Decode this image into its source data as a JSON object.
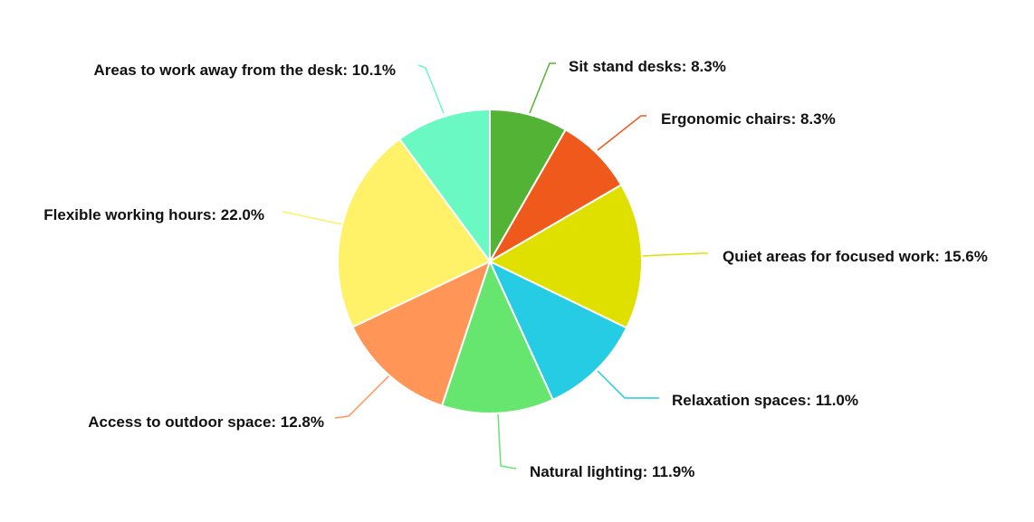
{
  "chart_data": {
    "type": "pie",
    "title": "",
    "start": "top",
    "direction": "clockwise",
    "slices": [
      {
        "label": "Sit stand desks",
        "value": 8.3,
        "color": "#52b334"
      },
      {
        "label": "Ergonomic chairs",
        "value": 8.3,
        "color": "#f0591c"
      },
      {
        "label": "Quiet areas for focused work",
        "value": 15.6,
        "color": "#dfe000"
      },
      {
        "label": "Relaxation spaces",
        "value": 11.0,
        "color": "#25cce4"
      },
      {
        "label": "Natural lighting",
        "value": 11.9,
        "color": "#66e66f"
      },
      {
        "label": "Access to outdoor space",
        "value": 12.8,
        "color": "#ff9657"
      },
      {
        "label": "Flexible working hours",
        "value": 22.0,
        "color": "#fff168"
      },
      {
        "label": "Areas to work away from the desk",
        "value": 10.1,
        "color": "#6bf9c3"
      }
    ]
  }
}
